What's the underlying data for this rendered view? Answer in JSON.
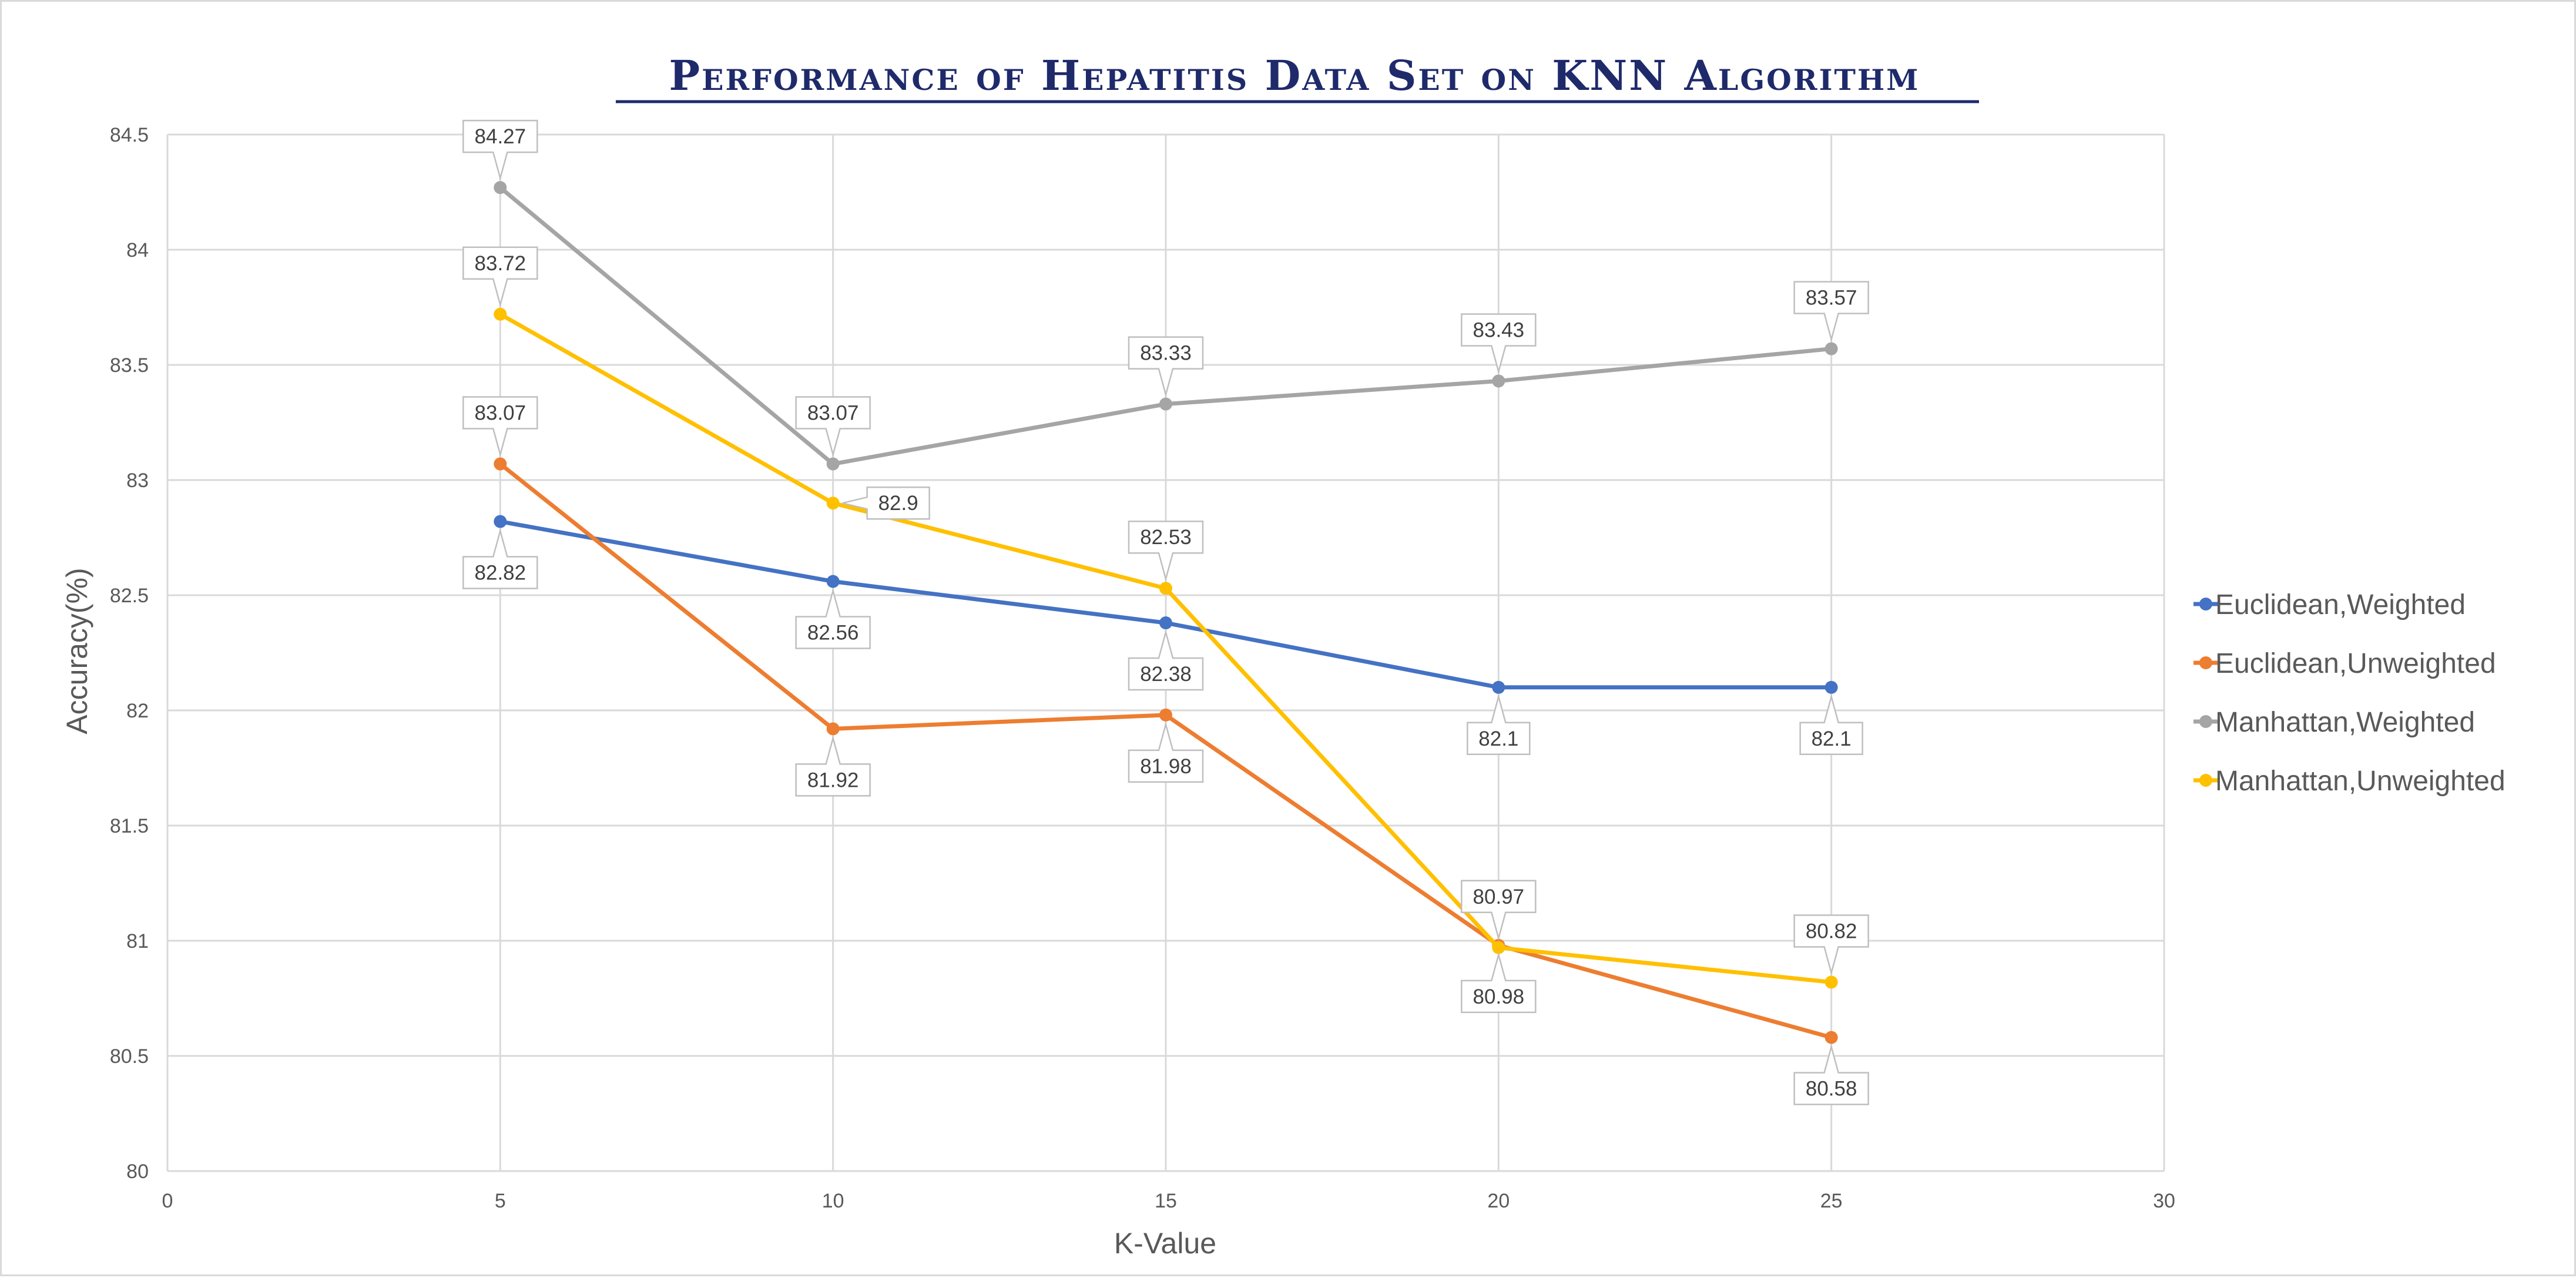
{
  "chart_data": {
    "type": "scatter",
    "title": "Performance of Hepatitis Data Set on KNN Algorithm",
    "xlabel": "K-Value",
    "ylabel": "Accuracy(%)",
    "xlim": [
      0,
      30
    ],
    "ylim": [
      80,
      84.5
    ],
    "x_ticks": [
      0,
      5,
      10,
      15,
      20,
      25,
      30
    ],
    "y_ticks": [
      80,
      80.5,
      81,
      81.5,
      82,
      82.5,
      83,
      83.5,
      84,
      84.5
    ],
    "grid": true,
    "legend_position": "right",
    "x": [
      5,
      10,
      15,
      20,
      25
    ],
    "series": [
      {
        "name": "Euclidean,Weighted",
        "color": "#4472c4",
        "values": [
          82.82,
          82.56,
          82.38,
          82.1,
          82.1
        ],
        "labels": [
          "82.82",
          "82.56",
          "82.38",
          "82.1",
          "82.1"
        ],
        "label_pos": [
          "below",
          "below",
          "below",
          "below",
          "below"
        ]
      },
      {
        "name": "Euclidean,Unweighted",
        "color": "#ed7d31",
        "values": [
          83.07,
          81.92,
          81.98,
          80.98,
          80.58
        ],
        "labels": [
          "83.07",
          "81.92",
          "81.98",
          "80.98",
          "80.58"
        ],
        "label_pos": [
          "above",
          "below",
          "below",
          "below",
          "below"
        ]
      },
      {
        "name": "Manhattan,Weighted",
        "color": "#a5a5a5",
        "values": [
          84.27,
          83.07,
          83.33,
          83.43,
          83.57
        ],
        "labels": [
          "84.27",
          "83.07",
          "83.33",
          "83.43",
          "83.57"
        ],
        "label_pos": [
          "above",
          "above",
          "above",
          "above",
          "above"
        ]
      },
      {
        "name": "Manhattan,Unweighted",
        "color": "#ffc000",
        "values": [
          83.72,
          82.9,
          82.53,
          80.97,
          80.82
        ],
        "labels": [
          "83.72",
          "82.9",
          "82.53",
          "80.97",
          "80.82"
        ],
        "label_pos": [
          "above",
          "right",
          "above",
          "above",
          "above"
        ]
      }
    ]
  }
}
